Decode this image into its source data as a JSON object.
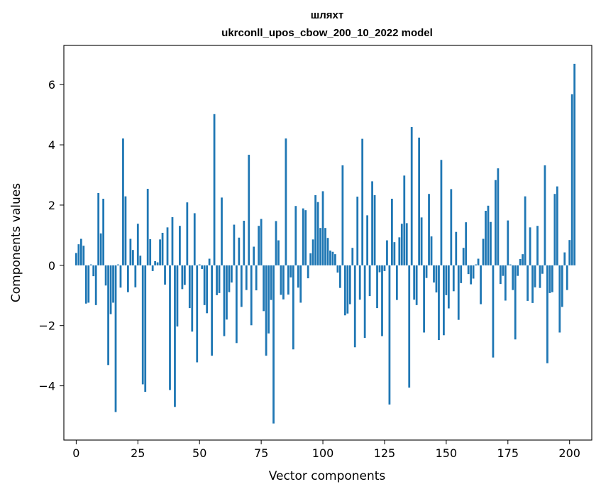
{
  "chart_data": {
    "type": "bar",
    "title": "шляхт",
    "subtitle": "ukrconll_upos_cbow_200_10_2022 model",
    "xlabel": "Vector components",
    "ylabel": "Components values",
    "xlim": [
      -5,
      209
    ],
    "ylim": [
      -5.8,
      7.3
    ],
    "xticks": [
      0,
      25,
      50,
      75,
      100,
      125,
      150,
      175,
      200
    ],
    "yticks": [
      -4,
      -2,
      0,
      2,
      4,
      6
    ],
    "ytick_labels": [
      "−4",
      "−2",
      "0",
      "2",
      "4",
      "6"
    ],
    "grid": false,
    "bar_color": "#1f77b4",
    "values": [
      0.41,
      0.7,
      0.88,
      0.65,
      -1.27,
      -1.24,
      0.03,
      -0.36,
      -1.32,
      2.4,
      1.06,
      2.21,
      -0.67,
      -3.31,
      -1.62,
      -1.24,
      -4.87,
      0.03,
      -0.74,
      4.21,
      2.29,
      -0.89,
      0.88,
      0.51,
      -0.73,
      1.38,
      0.32,
      -3.95,
      -4.2,
      2.54,
      0.87,
      -0.19,
      0.14,
      0.1,
      0.86,
      1.08,
      -0.64,
      1.26,
      -4.14,
      1.6,
      -4.7,
      -2.03,
      1.31,
      -0.79,
      -0.65,
      2.09,
      -1.42,
      -2.2,
      1.73,
      -3.22,
      0.03,
      -0.12,
      -1.32,
      -1.59,
      0.22,
      -3.0,
      5.02,
      -0.99,
      -0.92,
      2.25,
      -2.35,
      -1.8,
      -0.89,
      -0.57,
      1.35,
      -2.58,
      0.92,
      -1.38,
      1.48,
      -0.82,
      3.67,
      -1.99,
      0.62,
      -0.83,
      1.31,
      1.54,
      -1.52,
      -3.0,
      -2.26,
      -1.15,
      -5.25,
      1.47,
      0.83,
      -0.98,
      -1.13,
      4.21,
      -0.97,
      -0.4,
      -2.79,
      1.97,
      -0.74,
      -1.24,
      1.89,
      1.83,
      -0.43,
      0.4,
      0.86,
      2.33,
      2.1,
      1.24,
      2.46,
      1.24,
      0.91,
      0.49,
      0.45,
      0.37,
      -0.24,
      -0.75,
      3.32,
      -1.66,
      -1.6,
      -1.29,
      0.58,
      -2.72,
      2.28,
      -1.14,
      4.2,
      -2.41,
      1.66,
      -1.02,
      2.79,
      2.33,
      -1.42,
      -0.23,
      -2.35,
      -0.19,
      0.83,
      -4.62,
      2.21,
      0.77,
      -1.15,
      0.93,
      1.38,
      2.98,
      1.4,
      -4.06,
      4.59,
      -1.14,
      -1.32,
      4.24,
      1.59,
      -2.23,
      -0.42,
      2.37,
      0.96,
      -0.57,
      -0.9,
      -2.48,
      3.5,
      -2.32,
      -0.99,
      -1.43,
      2.53,
      -0.86,
      1.11,
      -1.81,
      -0.59,
      0.58,
      1.43,
      -0.29,
      -0.63,
      -0.44,
      0.03,
      0.22,
      -1.29,
      0.88,
      1.81,
      1.98,
      1.44,
      -3.06,
      2.83,
      3.22,
      -0.62,
      -0.35,
      -1.17,
      1.49,
      0.03,
      -0.82,
      -2.46,
      -0.35,
      0.21,
      0.37,
      2.29,
      -1.18,
      1.26,
      -1.25,
      -0.73,
      1.31,
      -0.75,
      -0.28,
      3.32,
      -3.25,
      -0.92,
      -0.89,
      2.37,
      2.62,
      -2.23,
      -1.38,
      0.43,
      -0.82,
      0.84,
      5.68,
      6.69
    ]
  }
}
